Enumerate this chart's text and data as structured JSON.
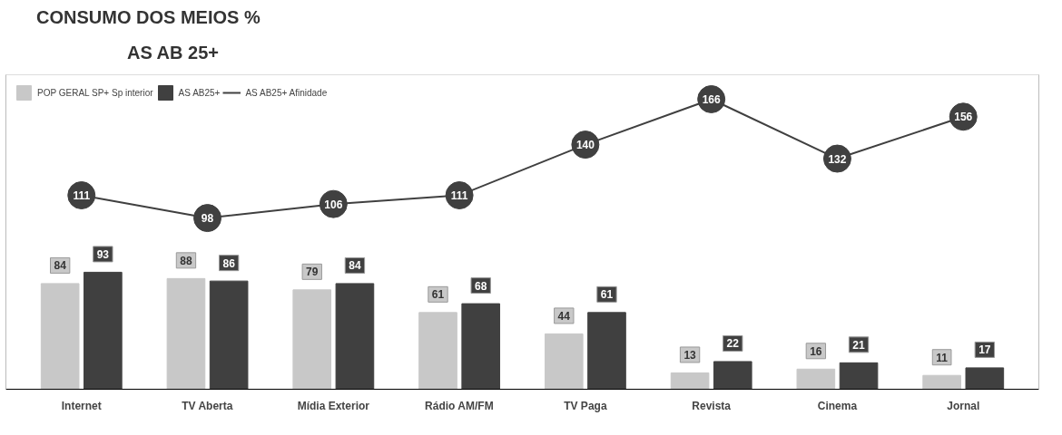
{
  "chart_data": {
    "type": "bar",
    "title": "CONSUMO DOS MEIOS %",
    "subtitle": "AS AB 25+",
    "categories": [
      "Internet",
      "TV Aberta",
      "Mídia Exterior",
      "Rádio AM/FM",
      "TV Paga",
      "Revista",
      "Cinema",
      "Jornal"
    ],
    "series": [
      {
        "name": "POP GERAL SP+ Sp interior",
        "color": "#c8c8c8",
        "values": [
          84,
          88,
          79,
          61,
          44,
          13,
          16,
          11
        ]
      },
      {
        "name": "AS AB25+",
        "color": "#404040",
        "values": [
          93,
          86,
          84,
          68,
          61,
          22,
          21,
          17
        ]
      },
      {
        "name": "AS AB25+ Afinidade",
        "color": "#404040",
        "type": "line",
        "axis": "y2",
        "values": [
          111,
          98,
          106,
          111,
          140,
          166,
          132,
          156
        ]
      }
    ],
    "ylim": [
      0,
      250
    ],
    "y2lim": [
      0,
      180
    ],
    "tick_labels": "x",
    "data_labels": true,
    "legend": "top left",
    "grid": false,
    "marker": "circle"
  }
}
